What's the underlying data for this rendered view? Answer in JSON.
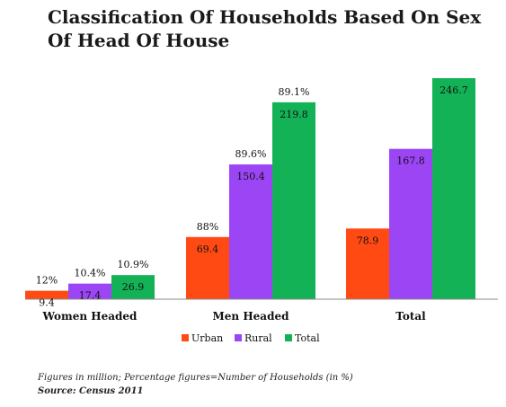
{
  "chart_data": {
    "type": "bar",
    "title": "Classification Of Households Based On Sex Of Head Of House",
    "categories": [
      "Women Headed",
      "Men Headed",
      "Total"
    ],
    "series": [
      {
        "name": "Urban",
        "color": "#FF4A14",
        "values": [
          9.4,
          69.4,
          78.9
        ],
        "percent_labels": [
          "12%",
          "88%",
          ""
        ]
      },
      {
        "name": "Rural",
        "color": "#9B45F5",
        "values": [
          17.4,
          150.4,
          167.8
        ],
        "percent_labels": [
          "10.4%",
          "89.6%",
          ""
        ]
      },
      {
        "name": "Total",
        "color": "#14B256",
        "values": [
          26.9,
          219.8,
          246.7
        ],
        "percent_labels": [
          "10.9%",
          "89.1%",
          ""
        ]
      }
    ],
    "ylim": [
      0,
      250
    ],
    "grid": false,
    "legend_position": "bottom"
  },
  "footnote": "Figures in million; Percentage figures=Number of Households (in %)",
  "source": "Source: Census 2011"
}
